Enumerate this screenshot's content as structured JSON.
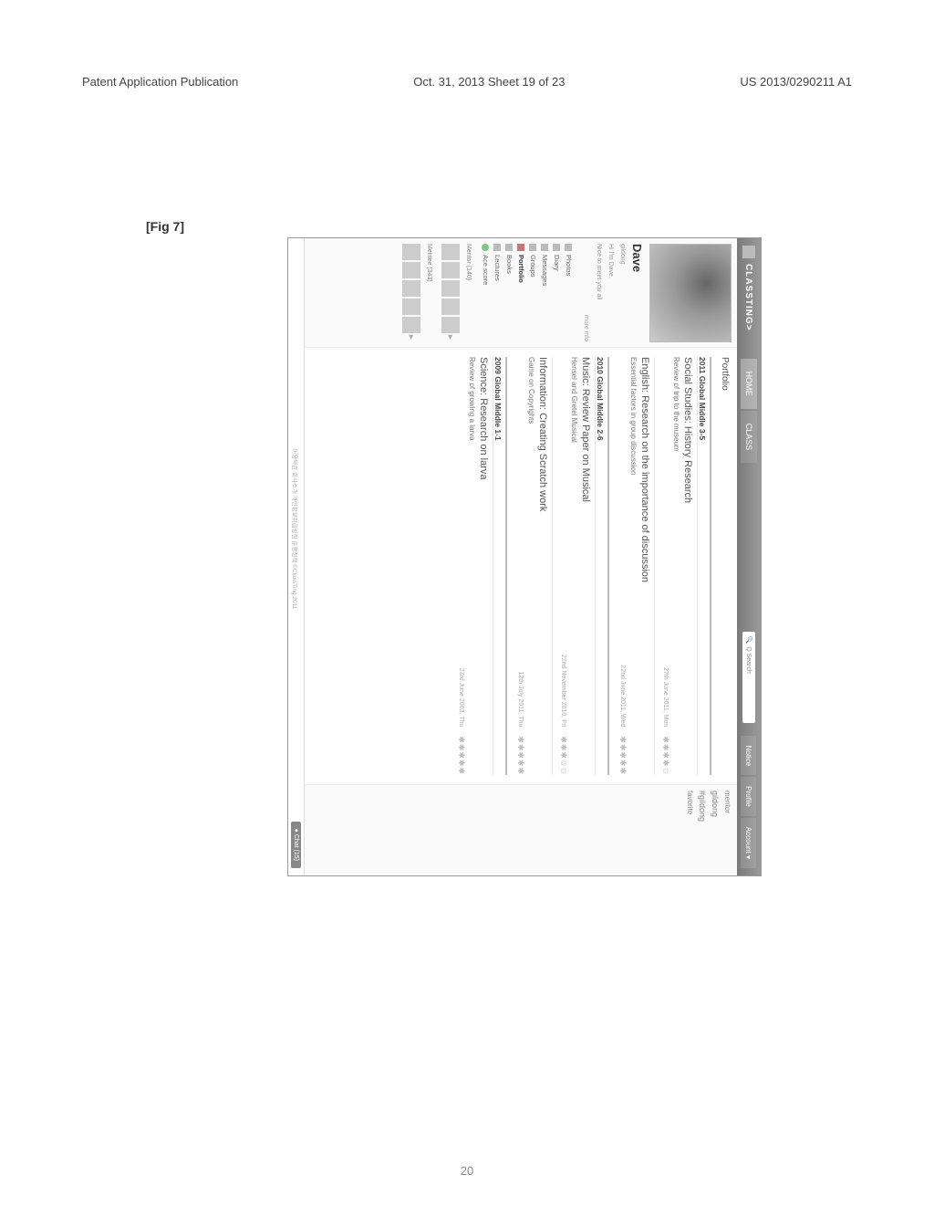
{
  "page_header": {
    "left": "Patent Application Publication",
    "center": "Oct. 31, 2013  Sheet 19 of 23",
    "right": "US 2013/0290211 A1"
  },
  "fig_label": "[Fig 7]",
  "page_num": "20",
  "ui": {
    "brand": "CLASSTING>",
    "nav": {
      "home": "HOME",
      "class": "CLASS"
    },
    "search_placeholder": "Q Search",
    "right_tabs": {
      "notice": "Notice",
      "profile": "Profile",
      "account": "Account ▾"
    },
    "left": {
      "user_name": "Dave",
      "line1": "gildong",
      "line2": "Hi I'm Dave.",
      "line3": "Nice to meet you all",
      "more": "more info",
      "menu": [
        {
          "icon": "photos-icon",
          "label": "Photos"
        },
        {
          "icon": "diary-icon",
          "label": "Diary"
        },
        {
          "icon": "messages-icon",
          "label": "Messages"
        },
        {
          "icon": "groups-icon",
          "label": "Groups"
        },
        {
          "icon": "portfolio-icon",
          "label": "Portfolio",
          "bold": true,
          "square": true
        },
        {
          "icon": "books-icon",
          "label": "Books"
        },
        {
          "icon": "lectures-icon",
          "label": "Lectures"
        },
        {
          "icon": "score-icon",
          "label": "Ace score",
          "circle": true
        }
      ],
      "mentor_label": "Mentor (140)",
      "mentee_label": "Mentee (343)"
    },
    "main": {
      "section": "Portfolio",
      "groups": [
        {
          "grade": "2011 Global Middle 3-5",
          "entries": [
            {
              "title": "Social Studies: History Research",
              "sub": "Review of trip to the museum",
              "date": "27th June 2011, Mon",
              "stars": 4
            },
            {
              "title": "English: Research on the importance of discussion",
              "sub": "Essential factors in group discussion",
              "date": "22nd June 2011, Wed",
              "stars": 5
            }
          ]
        },
        {
          "grade": "2010 Global Middle 2-6",
          "entries": [
            {
              "title": "Music: Review Paper on Musical",
              "sub": "Hensel and Gretel Musical",
              "date": "22nd November 2010, Fri",
              "stars": 3
            },
            {
              "title": "Information: Creating Scratch work",
              "sub": "Game on Copyrights",
              "date": "12th July 2011, Thu",
              "stars": 5
            }
          ]
        },
        {
          "grade": "2009 Global Middle 1-1",
          "entries": [
            {
              "title": "Science: Research on larva",
              "sub": "Review of growing a larva",
              "date": "23rd June 2003, Thu",
              "stars": 5
            }
          ]
        }
      ]
    },
    "right": {
      "mentor": "mentor",
      "l1": "gildong",
      "l2": "#gildong",
      "fav": "favorite"
    },
    "footer": {
      "links": [
        "이용약관",
        "회사소개",
        "개인정보취급방침",
        "운영정책",
        "©ClassTing 2011"
      ],
      "chat": "● Chat (15)"
    }
  }
}
